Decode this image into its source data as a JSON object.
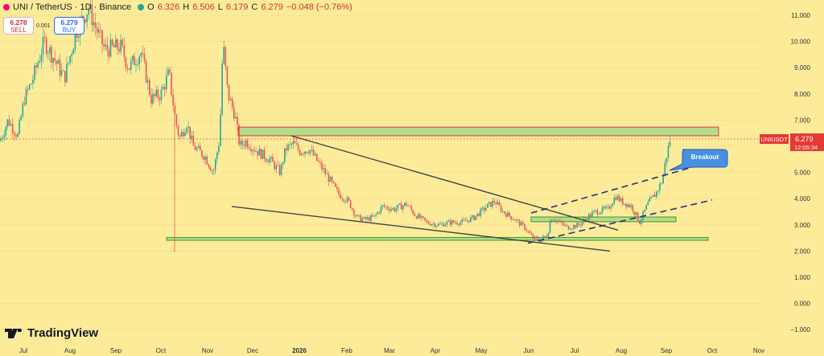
{
  "header": {
    "symbol": "UNI / TetherUS · 1D · Binance",
    "open_label": "O",
    "open": "6.326",
    "high_label": "H",
    "high": "6.506",
    "low_label": "L",
    "low": "6.179",
    "close_label": "C",
    "close": "6.279",
    "change": "−0.048 (−0.76%)"
  },
  "trade": {
    "sell_price": "6.278",
    "sell_label": "SELL",
    "spread": "0.001",
    "buy_price": "6.279",
    "buy_label": "BUY"
  },
  "price_tag": {
    "ticker": "UNIUSDT",
    "price": "6.279",
    "countdown": "12:05:34"
  },
  "annotation": "Breakout",
  "brand": "TradingView",
  "colors": {
    "up": "#26a69a",
    "down": "#ef5350",
    "zone": "#a6d889",
    "resistance_border": "#e03c3c",
    "support_border": "#3c9a2a",
    "channel": "#2b2f7a",
    "trendline": "#444444",
    "callout": "#4a90e2",
    "background": "#fcec9a"
  },
  "chart_data": {
    "type": "candlestick",
    "y_axis": {
      "min": -1.25,
      "max": 11.3,
      "ticks": [
        11,
        10,
        9,
        8,
        7,
        6,
        5,
        4,
        3,
        2,
        1,
        0,
        -1
      ],
      "tick_labels": [
        "11.000",
        "10.000",
        "9.000",
        "8.000",
        "7.000",
        "6.000",
        "5.000",
        "4.000",
        "3.000",
        "2.000",
        "1.000",
        "0.000",
        "−1.000"
      ]
    },
    "x_axis": {
      "labels": [
        "Jul",
        "Aug",
        "Sep",
        "Oct",
        "Nov",
        "Dec",
        "2026",
        "Feb",
        "Mar",
        "Apr",
        "May",
        "Jun",
        "Jul",
        "Aug",
        "Sep",
        "Oct",
        "Nov"
      ],
      "label_positions": [
        29,
        87,
        144,
        200,
        258,
        314,
        372,
        431,
        484,
        541,
        598,
        657,
        714,
        772,
        828,
        885,
        943
      ]
    },
    "price_path": [
      [
        0,
        6.2
      ],
      [
        10,
        7.0
      ],
      [
        22,
        6.4
      ],
      [
        30,
        7.8
      ],
      [
        40,
        8.5
      ],
      [
        55,
        10.0
      ],
      [
        68,
        9.3
      ],
      [
        80,
        8.6
      ],
      [
        95,
        10.4
      ],
      [
        110,
        11.3
      ],
      [
        118,
        10.6
      ],
      [
        130,
        9.7
      ],
      [
        150,
        9.8
      ],
      [
        160,
        9.0
      ],
      [
        175,
        9.6
      ],
      [
        188,
        7.8
      ],
      [
        200,
        8.0
      ],
      [
        210,
        8.8
      ],
      [
        218,
        7.0
      ],
      [
        223,
        6.3
      ],
      [
        232,
        6.9
      ],
      [
        240,
        6.0
      ],
      [
        255,
        5.6
      ],
      [
        265,
        5.0
      ],
      [
        273,
        6.3
      ],
      [
        277,
        10.0
      ],
      [
        283,
        8.0
      ],
      [
        292,
        7.2
      ],
      [
        298,
        6.0
      ],
      [
        305,
        6.2
      ],
      [
        320,
        5.8
      ],
      [
        335,
        5.5
      ],
      [
        348,
        5.0
      ],
      [
        355,
        5.9
      ],
      [
        365,
        6.1
      ],
      [
        372,
        5.8
      ],
      [
        384,
        5.9
      ],
      [
        395,
        5.4
      ],
      [
        408,
        4.8
      ],
      [
        420,
        4.2
      ],
      [
        433,
        3.9
      ],
      [
        443,
        3.3
      ],
      [
        453,
        3.2
      ],
      [
        465,
        3.3
      ],
      [
        475,
        3.7
      ],
      [
        490,
        3.6
      ],
      [
        505,
        3.8
      ],
      [
        515,
        3.4
      ],
      [
        530,
        3.1
      ],
      [
        545,
        3.0
      ],
      [
        560,
        3.1
      ],
      [
        575,
        3.1
      ],
      [
        590,
        3.3
      ],
      [
        605,
        3.7
      ],
      [
        615,
        3.9
      ],
      [
        625,
        3.5
      ],
      [
        640,
        3.2
      ],
      [
        652,
        2.9
      ],
      [
        662,
        2.5
      ],
      [
        670,
        2.4
      ],
      [
        680,
        2.6
      ],
      [
        685,
        3.3
      ],
      [
        695,
        3.1
      ],
      [
        705,
        2.9
      ],
      [
        720,
        3.0
      ],
      [
        730,
        3.3
      ],
      [
        740,
        3.5
      ],
      [
        755,
        3.6
      ],
      [
        765,
        4.1
      ],
      [
        772,
        3.9
      ],
      [
        785,
        3.7
      ],
      [
        795,
        3.1
      ],
      [
        805,
        3.8
      ],
      [
        815,
        4.2
      ],
      [
        823,
        4.7
      ],
      [
        828,
        5.6
      ],
      [
        833,
        6.28
      ]
    ],
    "zones": [
      {
        "name": "resistance",
        "x1": 296,
        "x2": 893,
        "y1": 6.4,
        "y2": 6.73
      },
      {
        "name": "mid-support",
        "x1": 660,
        "x2": 840,
        "y1": 3.12,
        "y2": 3.3
      },
      {
        "name": "major-support",
        "x1": 207,
        "x2": 880,
        "y1": 2.41,
        "y2": 2.52
      }
    ],
    "trendlines": [
      {
        "name": "descending-resistance",
        "from": [
          362,
          6.4
        ],
        "to": [
          768,
          2.8
        ]
      },
      {
        "name": "descending-support",
        "from": [
          288,
          3.7
        ],
        "to": [
          758,
          2.0
        ]
      }
    ],
    "channel": [
      {
        "name": "channel-upper",
        "from": [
          660,
          3.45
        ],
        "to": [
          872,
          5.3
        ]
      },
      {
        "name": "channel-lower",
        "from": [
          656,
          2.3
        ],
        "to": [
          885,
          3.95
        ]
      }
    ],
    "current_price": 6.279
  }
}
